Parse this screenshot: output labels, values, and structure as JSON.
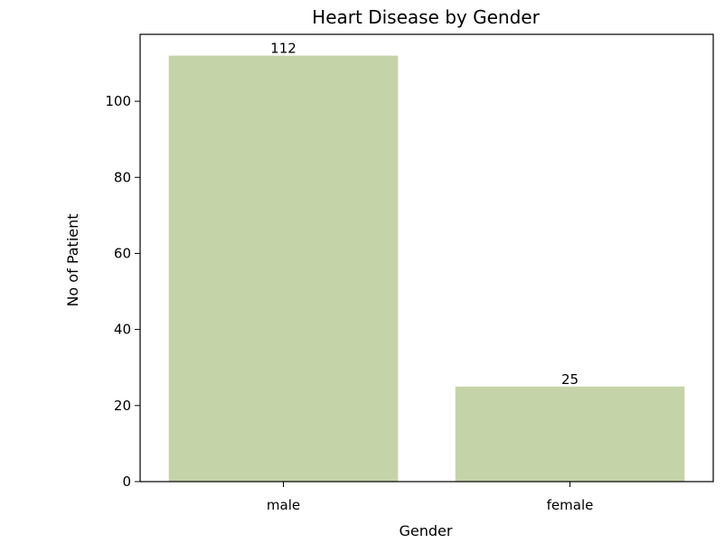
{
  "chart_data": {
    "type": "bar",
    "title": "Heart Disease by Gender",
    "xlabel": "Gender",
    "ylabel": "No of Patient",
    "categories": [
      "male",
      "female"
    ],
    "values": [
      112,
      25
    ],
    "data_labels": [
      "112",
      "25"
    ],
    "yticks": [
      0,
      20,
      40,
      60,
      80,
      100
    ],
    "ylim": [
      0,
      117.6
    ],
    "grid": false,
    "bar_color": "#c4d4a8"
  }
}
